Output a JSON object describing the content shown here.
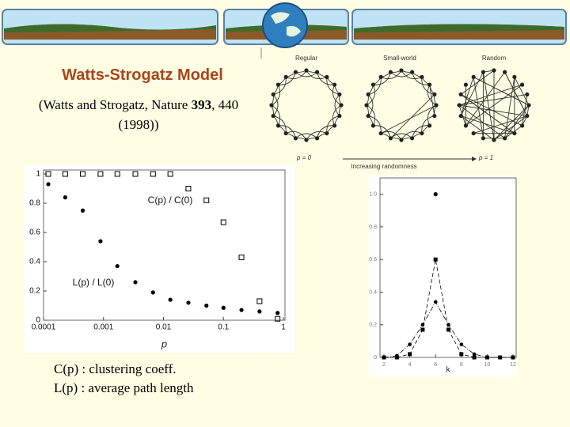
{
  "title": "Watts-Strogatz Model",
  "citation": [
    "(Watts and Strogatz, Nature ",
    "393",
    ", 440 (1998))"
  ],
  "diagram": {
    "labels": [
      "Regular",
      "Small-world",
      "Random"
    ],
    "p_start": "p = 0",
    "p_end": "p = 1",
    "arrow_label": "Increasing randomness"
  },
  "notes": [
    "C(p) : clustering coeff.",
    "L(p) : average path length"
  ],
  "chart_data": [
    {
      "type": "scatter",
      "xscale": "log",
      "x_label": "p",
      "x": [
        0.00012,
        0.00023,
        0.00045,
        0.00089,
        0.0017,
        0.0034,
        0.0067,
        0.013,
        0.026,
        0.052,
        0.1,
        0.2,
        0.4,
        0.8
      ],
      "series": [
        {
          "name": "C(p) / C(0)",
          "color": "#000000",
          "marker": "square-open",
          "values": [
            1,
            1,
            1,
            1,
            1,
            1,
            1,
            1,
            0.9,
            0.82,
            0.67,
            0.43,
            0.13,
            0.01
          ]
        },
        {
          "name": "L(p) / L(0)",
          "color": "#000000",
          "marker": "circle",
          "values": [
            0.93,
            0.84,
            0.75,
            0.54,
            0.37,
            0.26,
            0.19,
            0.14,
            0.12,
            0.1,
            0.085,
            0.07,
            0.06,
            0.05
          ]
        }
      ],
      "xlim": [
        0.0001,
        1
      ],
      "xticks": [
        0.0001,
        0.001,
        0.01,
        0.1,
        1
      ],
      "ylim": [
        0,
        1
      ],
      "yticks": [
        0,
        0.2,
        0.4,
        0.6,
        0.8,
        1
      ]
    },
    {
      "type": "line",
      "x_label": "k",
      "x": [
        2,
        3,
        4,
        5,
        6,
        7,
        8,
        9,
        10,
        11,
        12
      ],
      "series": [
        {
          "color": "#000000",
          "marker": "circle",
          "values": [
            null,
            null,
            null,
            null,
            1,
            null,
            null,
            null,
            null,
            null,
            null
          ]
        },
        {
          "color": "#000000",
          "marker": "square",
          "dash": "5,3",
          "values": [
            0,
            0,
            0.02,
            0.17,
            0.6,
            0.17,
            0.02,
            0,
            0,
            0,
            0
          ]
        },
        {
          "color": "#000000",
          "marker": "circle-small",
          "dash": "6,2,1,2",
          "values": [
            0,
            0.01,
            0.08,
            0.2,
            0.34,
            0.2,
            0.08,
            0.02,
            0,
            0,
            0
          ]
        }
      ],
      "xlim": [
        2,
        12
      ],
      "xticks": [
        2,
        4,
        6,
        8,
        10,
        12
      ],
      "ylim": [
        0,
        1.1
      ],
      "yticks": [
        0,
        0.2,
        0.4,
        0.6,
        0.8,
        {
          "value": 1,
          "label": "1.0"
        }
      ]
    }
  ]
}
